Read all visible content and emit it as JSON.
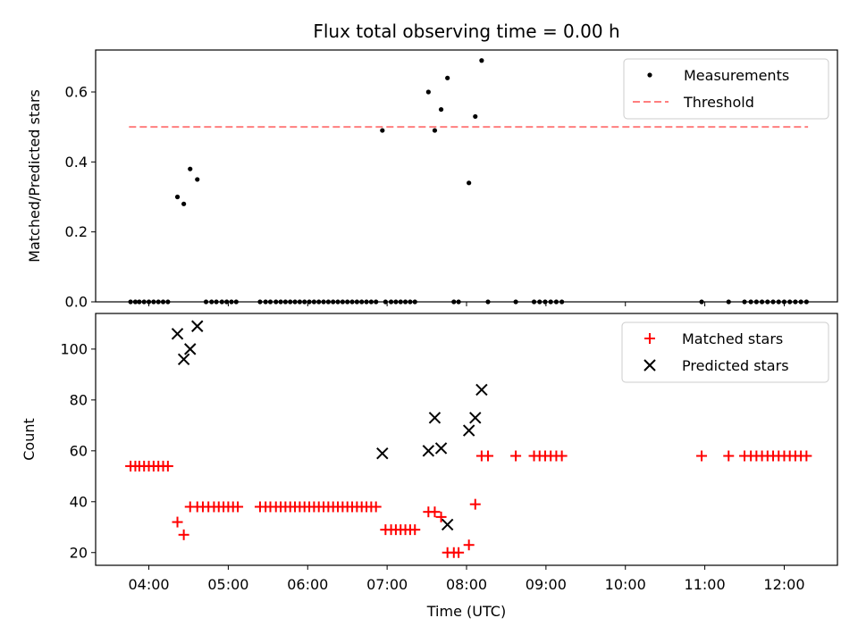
{
  "chart_data": [
    {
      "panel": "top",
      "type": "scatter",
      "title": "Flux total observing time = 0.00 h",
      "xlabel": "",
      "ylabel": "Matched/Predicted stars",
      "xlim": [
        3.33,
        12.67
      ],
      "ylim": [
        0,
        0.72
      ],
      "yticks": [
        0.0,
        0.2,
        0.4,
        0.6
      ],
      "ytick_labels": [
        "0.0",
        "0.2",
        "0.4",
        "0.6"
      ],
      "legend": "top-right",
      "threshold": {
        "name": "Threshold",
        "value": 0.5,
        "x_range": [
          3.75,
          12.3
        ],
        "color": "#ff7f7f"
      },
      "series": [
        {
          "name": "Measurements",
          "color": "#000000",
          "points": [
            [
              3.77,
              0
            ],
            [
              3.83,
              0
            ],
            [
              3.88,
              0
            ],
            [
              3.94,
              0
            ],
            [
              4.0,
              0
            ],
            [
              4.06,
              0
            ],
            [
              4.12,
              0
            ],
            [
              4.18,
              0
            ],
            [
              4.24,
              0
            ],
            [
              4.36,
              0.3
            ],
            [
              4.44,
              0.28
            ],
            [
              4.52,
              0.38
            ],
            [
              4.61,
              0.35
            ],
            [
              4.72,
              0
            ],
            [
              4.79,
              0
            ],
            [
              4.85,
              0
            ],
            [
              4.92,
              0
            ],
            [
              4.98,
              0
            ],
            [
              5.04,
              0
            ],
            [
              5.1,
              0
            ],
            [
              5.4,
              0
            ],
            [
              5.47,
              0
            ],
            [
              5.53,
              0
            ],
            [
              5.6,
              0
            ],
            [
              5.66,
              0
            ],
            [
              5.72,
              0
            ],
            [
              5.78,
              0
            ],
            [
              5.84,
              0
            ],
            [
              5.9,
              0
            ],
            [
              5.96,
              0
            ],
            [
              6.02,
              0
            ],
            [
              6.08,
              0
            ],
            [
              6.14,
              0
            ],
            [
              6.2,
              0
            ],
            [
              6.26,
              0
            ],
            [
              6.32,
              0
            ],
            [
              6.38,
              0
            ],
            [
              6.44,
              0
            ],
            [
              6.5,
              0
            ],
            [
              6.56,
              0
            ],
            [
              6.62,
              0
            ],
            [
              6.68,
              0
            ],
            [
              6.74,
              0
            ],
            [
              6.8,
              0
            ],
            [
              6.86,
              0
            ],
            [
              6.94,
              0.49
            ],
            [
              6.98,
              0
            ],
            [
              7.05,
              0
            ],
            [
              7.11,
              0
            ],
            [
              7.17,
              0
            ],
            [
              7.23,
              0
            ],
            [
              7.29,
              0
            ],
            [
              7.35,
              0
            ],
            [
              7.52,
              0.6
            ],
            [
              7.6,
              0.49
            ],
            [
              7.68,
              0.55
            ],
            [
              7.76,
              0.64
            ],
            [
              7.84,
              0
            ],
            [
              7.9,
              0
            ],
            [
              8.03,
              0.34
            ],
            [
              8.11,
              0.53
            ],
            [
              8.19,
              0.69
            ],
            [
              8.27,
              0
            ],
            [
              8.62,
              0
            ],
            [
              8.85,
              0
            ],
            [
              8.92,
              0
            ],
            [
              8.99,
              0
            ],
            [
              9.06,
              0
            ],
            [
              9.13,
              0
            ],
            [
              9.2,
              0
            ],
            [
              10.96,
              0
            ],
            [
              11.3,
              0
            ],
            [
              11.5,
              0
            ],
            [
              11.58,
              0
            ],
            [
              11.65,
              0
            ],
            [
              11.72,
              0
            ],
            [
              11.79,
              0
            ],
            [
              11.86,
              0
            ],
            [
              11.93,
              0
            ],
            [
              12.0,
              0
            ],
            [
              12.07,
              0
            ],
            [
              12.14,
              0
            ],
            [
              12.21,
              0
            ],
            [
              12.28,
              0
            ]
          ]
        }
      ]
    },
    {
      "panel": "bottom",
      "type": "scatter",
      "title": "",
      "xlabel": "Time (UTC)",
      "ylabel": "Count",
      "xlim": [
        3.33,
        12.67
      ],
      "ylim": [
        15,
        114
      ],
      "yticks": [
        20,
        40,
        60,
        80,
        100
      ],
      "ytick_labels": [
        "20",
        "40",
        "60",
        "80",
        "100"
      ],
      "xticks": [
        4,
        5,
        6,
        7,
        8,
        9,
        10,
        11,
        12
      ],
      "xtick_labels": [
        "04:00",
        "05:00",
        "06:00",
        "07:00",
        "08:00",
        "09:00",
        "10:00",
        "11:00",
        "12:00"
      ],
      "legend": "top-right",
      "series": [
        {
          "name": "Matched stars",
          "marker": "plus",
          "color": "#ff0000",
          "points": [
            [
              3.77,
              54
            ],
            [
              3.83,
              54
            ],
            [
              3.88,
              54
            ],
            [
              3.94,
              54
            ],
            [
              4.0,
              54
            ],
            [
              4.06,
              54
            ],
            [
              4.12,
              54
            ],
            [
              4.18,
              54
            ],
            [
              4.24,
              54
            ],
            [
              4.36,
              32
            ],
            [
              4.44,
              27
            ],
            [
              4.52,
              38
            ],
            [
              4.61,
              38
            ],
            [
              4.68,
              38
            ],
            [
              4.75,
              38
            ],
            [
              4.82,
              38
            ],
            [
              4.88,
              38
            ],
            [
              4.94,
              38
            ],
            [
              5.0,
              38
            ],
            [
              5.06,
              38
            ],
            [
              5.12,
              38
            ],
            [
              5.4,
              38
            ],
            [
              5.47,
              38
            ],
            [
              5.53,
              38
            ],
            [
              5.6,
              38
            ],
            [
              5.66,
              38
            ],
            [
              5.72,
              38
            ],
            [
              5.78,
              38
            ],
            [
              5.84,
              38
            ],
            [
              5.9,
              38
            ],
            [
              5.96,
              38
            ],
            [
              6.02,
              38
            ],
            [
              6.08,
              38
            ],
            [
              6.14,
              38
            ],
            [
              6.2,
              38
            ],
            [
              6.26,
              38
            ],
            [
              6.32,
              38
            ],
            [
              6.38,
              38
            ],
            [
              6.44,
              38
            ],
            [
              6.5,
              38
            ],
            [
              6.56,
              38
            ],
            [
              6.62,
              38
            ],
            [
              6.68,
              38
            ],
            [
              6.74,
              38
            ],
            [
              6.8,
              38
            ],
            [
              6.86,
              38
            ],
            [
              6.98,
              29
            ],
            [
              7.05,
              29
            ],
            [
              7.11,
              29
            ],
            [
              7.17,
              29
            ],
            [
              7.23,
              29
            ],
            [
              7.29,
              29
            ],
            [
              7.35,
              29
            ],
            [
              7.52,
              36
            ],
            [
              7.6,
              36
            ],
            [
              7.68,
              34
            ],
            [
              7.76,
              20
            ],
            [
              7.84,
              20
            ],
            [
              7.9,
              20
            ],
            [
              8.03,
              23
            ],
            [
              8.11,
              39
            ],
            [
              8.19,
              58
            ],
            [
              8.27,
              58
            ],
            [
              8.62,
              58
            ],
            [
              8.85,
              58
            ],
            [
              8.92,
              58
            ],
            [
              8.99,
              58
            ],
            [
              9.06,
              58
            ],
            [
              9.13,
              58
            ],
            [
              9.2,
              58
            ],
            [
              10.96,
              58
            ],
            [
              11.3,
              58
            ],
            [
              11.5,
              58
            ],
            [
              11.58,
              58
            ],
            [
              11.65,
              58
            ],
            [
              11.72,
              58
            ],
            [
              11.79,
              58
            ],
            [
              11.86,
              58
            ],
            [
              11.93,
              58
            ],
            [
              12.0,
              58
            ],
            [
              12.07,
              58
            ],
            [
              12.14,
              58
            ],
            [
              12.21,
              58
            ],
            [
              12.28,
              58
            ]
          ]
        },
        {
          "name": "Predicted stars",
          "marker": "x",
          "color": "#000000",
          "points": [
            [
              4.36,
              106
            ],
            [
              4.44,
              96
            ],
            [
              4.52,
              100
            ],
            [
              4.61,
              109
            ],
            [
              6.94,
              59
            ],
            [
              7.52,
              60
            ],
            [
              7.6,
              73
            ],
            [
              7.68,
              61
            ],
            [
              7.76,
              31
            ],
            [
              8.03,
              68
            ],
            [
              8.11,
              73
            ],
            [
              8.19,
              84
            ]
          ]
        }
      ]
    }
  ]
}
